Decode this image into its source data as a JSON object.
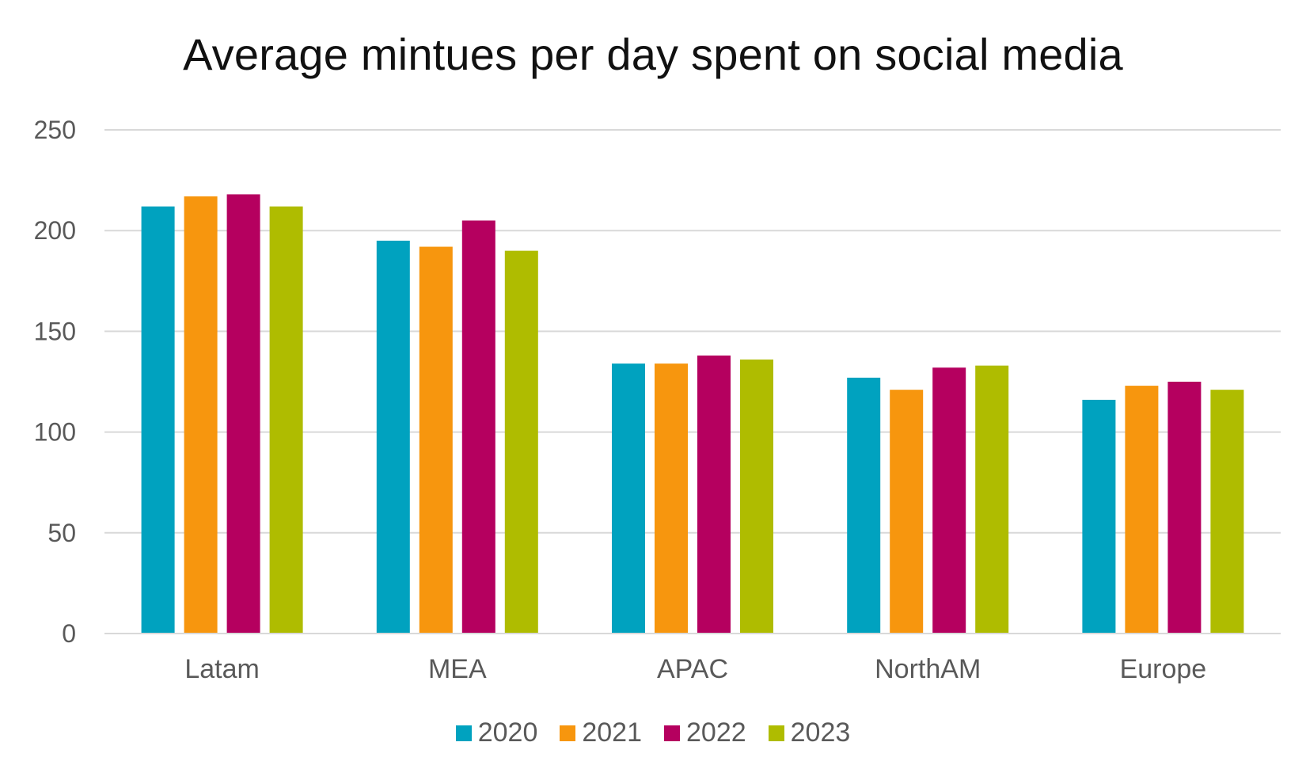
{
  "chart_data": {
    "type": "bar",
    "title": "Average mintues per day spent on social media",
    "xlabel": "",
    "ylabel": "",
    "categories": [
      "Latam",
      "MEA",
      "APAC",
      "NorthAM",
      "Europe"
    ],
    "ylim": [
      0,
      250
    ],
    "yticks": [
      0,
      50,
      100,
      150,
      200,
      250
    ],
    "grid": true,
    "legend_position": "bottom",
    "series": [
      {
        "name": "2020",
        "color": "#00A2BF",
        "values": [
          212,
          195,
          134,
          127,
          116
        ]
      },
      {
        "name": "2021",
        "color": "#F7960E",
        "values": [
          217,
          192,
          134,
          121,
          123
        ]
      },
      {
        "name": "2022",
        "color": "#B5005F",
        "values": [
          218,
          205,
          138,
          132,
          125
        ]
      },
      {
        "name": "2023",
        "color": "#AFBC00",
        "values": [
          212,
          190,
          136,
          133,
          121
        ]
      }
    ]
  }
}
